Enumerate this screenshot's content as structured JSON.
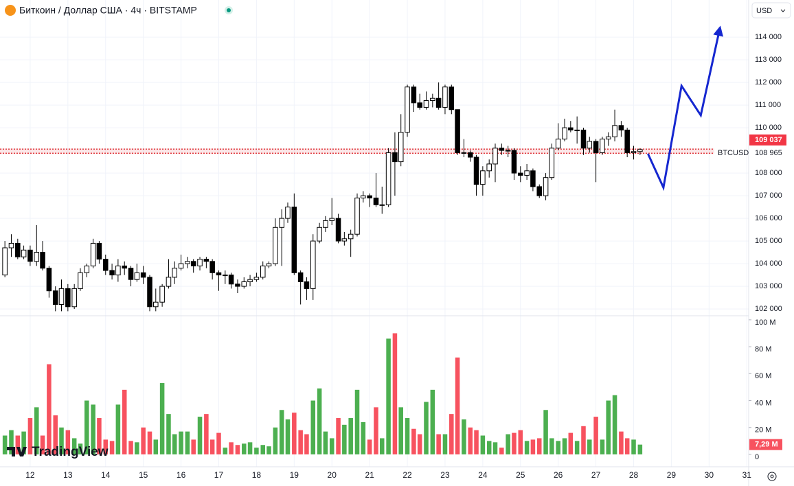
{
  "chart_data": {
    "type": "candlestick",
    "title": "Биткоин / Доллар США · 4ч · BITSTAMP",
    "currency": "USD",
    "brand": "TradingView",
    "up_color": "#ffffff",
    "down_color": "#000000",
    "volume_up_color": "#4caf50",
    "volume_down_color": "#f7525f",
    "x": [
      11.33,
      11.5,
      11.67,
      11.83,
      12,
      12.17,
      12.33,
      12.5,
      12.67,
      12.83,
      13,
      13.17,
      13.33,
      13.5,
      13.67,
      13.83,
      14,
      14.17,
      14.33,
      14.5,
      14.67,
      14.83,
      15,
      15.17,
      15.33,
      15.5,
      15.67,
      15.83,
      16,
      16.17,
      16.33,
      16.5,
      16.67,
      16.83,
      17,
      17.17,
      17.33,
      17.5,
      17.67,
      17.83,
      18,
      18.17,
      18.33,
      18.5,
      18.67,
      18.83,
      19,
      19.17,
      19.33,
      19.5,
      19.67,
      19.83,
      20,
      20.17,
      20.33,
      20.5,
      20.67,
      20.83,
      21,
      21.17,
      21.33,
      21.5,
      21.67,
      21.83,
      22,
      22.17,
      22.33,
      22.5,
      22.67,
      22.83,
      23,
      23.17,
      23.33,
      23.5,
      23.67,
      23.83,
      24,
      24.17,
      24.33,
      24.5,
      24.67,
      24.83,
      25,
      25.17,
      25.33,
      25.5,
      25.67,
      25.83,
      26,
      26.17,
      26.33,
      26.5,
      26.67,
      26.83,
      27,
      27.17,
      27.33,
      27.5,
      27.67,
      27.83,
      28,
      28.17
    ],
    "open": [
      103500,
      104700,
      104900,
      104300,
      104600,
      104100,
      104500,
      103800,
      102800,
      102200,
      102900,
      102100,
      102900,
      103600,
      103900,
      104900,
      104200,
      103700,
      103500,
      103900,
      103800,
      103300,
      103600,
      103400,
      102100,
      102300,
      103000,
      103400,
      103800,
      104000,
      104100,
      103900,
      104200,
      104100,
      103600,
      103500,
      103500,
      103100,
      103000,
      103200,
      103300,
      103400,
      103900,
      104000,
      105600,
      106000,
      106500,
      103600,
      103200,
      102900,
      105000,
      105600,
      105900,
      106000,
      105000,
      105100,
      105300,
      106900,
      107000,
      106900,
      106600,
      106600,
      108900,
      108500,
      109800,
      111800,
      111100,
      110900,
      111200,
      111300,
      110900,
      111800,
      110800,
      108900,
      108900,
      108700,
      107500,
      108100,
      108400,
      109100,
      109000,
      109000,
      108000,
      107900,
      108100,
      107400,
      107000,
      107800,
      109100,
      109500,
      110000,
      109900,
      109900,
      109100,
      109400,
      108900,
      109500,
      109600,
      110100,
      109900,
      108900,
      108950
    ],
    "high": [
      105000,
      105300,
      105100,
      104800,
      104800,
      105700,
      105000,
      103900,
      103000,
      103300,
      103100,
      103100,
      103800,
      104000,
      105100,
      105000,
      104400,
      104000,
      104200,
      104100,
      103900,
      104000,
      103900,
      103500,
      102900,
      103100,
      104200,
      104100,
      104400,
      104300,
      104200,
      104300,
      104300,
      104200,
      103700,
      103700,
      103600,
      103300,
      103400,
      103500,
      103600,
      104100,
      104100,
      106000,
      106400,
      106700,
      107100,
      103700,
      103400,
      105300,
      105800,
      106100,
      106900,
      106200,
      105400,
      105500,
      107100,
      107200,
      107100,
      108000,
      107400,
      109100,
      109800,
      110600,
      111900,
      111900,
      111500,
      111600,
      111500,
      112000,
      111900,
      111900,
      110800,
      109500,
      109000,
      108800,
      108300,
      108600,
      109300,
      109300,
      109200,
      109100,
      108300,
      108400,
      108200,
      107500,
      108000,
      109300,
      110200,
      110400,
      110300,
      110500,
      110000,
      109600,
      109500,
      109600,
      109800,
      110800,
      110300,
      110000,
      109200,
      109100
    ],
    "low": [
      103400,
      104300,
      104200,
      104200,
      103900,
      103900,
      103700,
      102500,
      101900,
      101900,
      101900,
      102000,
      102800,
      103400,
      103800,
      104000,
      103500,
      103300,
      103200,
      103500,
      103000,
      103200,
      103100,
      101900,
      101900,
      102100,
      102900,
      103100,
      103700,
      103800,
      103600,
      103700,
      103800,
      103300,
      102800,
      103100,
      102900,
      102700,
      102900,
      103000,
      103200,
      103300,
      103800,
      103900,
      103900,
      105800,
      103500,
      102200,
      102400,
      102400,
      104900,
      105400,
      105700,
      104900,
      104800,
      104300,
      105200,
      106700,
      106500,
      106500,
      106200,
      106500,
      107000,
      108300,
      109600,
      110700,
      110800,
      110800,
      110900,
      110800,
      110600,
      110600,
      108800,
      108700,
      108500,
      107000,
      107000,
      107800,
      107600,
      108800,
      108700,
      107700,
      107600,
      107700,
      107200,
      106900,
      106800,
      107700,
      109000,
      109400,
      109800,
      109300,
      108800,
      108900,
      107600,
      108800,
      109200,
      109400,
      109600,
      108700,
      108600,
      108800
    ],
    "close": [
      104700,
      104900,
      104300,
      104600,
      104100,
      104500,
      103800,
      102800,
      102200,
      102900,
      102100,
      102900,
      103600,
      103900,
      104900,
      104200,
      103700,
      103500,
      103900,
      103800,
      103300,
      103600,
      103400,
      102100,
      102300,
      103000,
      103400,
      103800,
      104000,
      104100,
      103900,
      104200,
      104100,
      103600,
      103500,
      103500,
      103100,
      103000,
      103200,
      103300,
      103400,
      103900,
      104000,
      105600,
      106000,
      106500,
      103600,
      103200,
      102900,
      105000,
      105600,
      105900,
      106000,
      105000,
      105100,
      105300,
      106900,
      107000,
      106900,
      106600,
      106600,
      108900,
      108500,
      109800,
      111800,
      111100,
      110900,
      111200,
      111300,
      110900,
      111800,
      110800,
      108900,
      108900,
      108700,
      107500,
      108100,
      108400,
      109100,
      109000,
      109000,
      108000,
      107900,
      108100,
      107400,
      107000,
      107800,
      109100,
      109500,
      110000,
      109900,
      109900,
      109100,
      109400,
      108900,
      109500,
      109600,
      110100,
      109900,
      108900,
      108950,
      109037
    ],
    "volume": [
      14,
      18,
      14,
      17,
      27,
      35,
      14,
      67,
      29,
      20,
      18,
      12,
      8,
      40,
      37,
      27,
      11,
      10,
      37,
      48,
      10,
      9,
      20,
      17,
      11,
      53,
      30,
      15,
      17,
      17,
      11,
      28,
      30,
      11,
      16,
      5,
      9,
      7,
      8,
      9,
      5,
      7,
      6,
      20,
      33,
      26,
      31,
      18,
      15,
      40,
      49,
      17,
      12,
      27,
      22,
      27,
      48,
      24,
      11,
      35,
      12,
      86,
      90,
      35,
      27,
      19,
      15,
      39,
      48,
      15,
      15,
      30,
      72,
      26,
      20,
      18,
      14,
      10,
      9,
      5,
      15,
      16,
      18,
      10,
      11,
      12,
      33,
      12,
      10,
      12,
      16,
      10,
      21,
      11,
      28,
      11,
      40,
      44,
      17,
      12,
      11,
      7.29
    ],
    "xlim": [
      11.2,
      31.05
    ],
    "xticks": [
      12,
      13,
      14,
      15,
      16,
      17,
      18,
      19,
      20,
      21,
      22,
      23,
      24,
      25,
      26,
      27,
      28,
      29,
      30,
      31
    ],
    "ylim": [
      101700,
      115640
    ],
    "yticks": [
      {
        "value": 102000,
        "label": "102 000"
      },
      {
        "value": 103000,
        "label": "103 000"
      },
      {
        "value": 104000,
        "label": "104 000"
      },
      {
        "value": 105000,
        "label": "105 000"
      },
      {
        "value": 106000,
        "label": "106 000"
      },
      {
        "value": 107000,
        "label": "107 000"
      },
      {
        "value": 108000,
        "label": "108 000"
      },
      {
        "value": 110000,
        "label": "110 000"
      },
      {
        "value": 111000,
        "label": "111 000"
      },
      {
        "value": 112000,
        "label": "112 000"
      },
      {
        "value": 113000,
        "label": "113 000"
      },
      {
        "value": 114000,
        "label": "114 000"
      }
    ],
    "volume_ylim": [
      -9.2,
      103
    ],
    "volume_yticks": [
      0,
      {
        "value": 20,
        "label": "20 M"
      },
      {
        "value": 40,
        "label": "40 M"
      },
      {
        "value": 60,
        "label": "60 M"
      },
      {
        "value": 80,
        "label": "80 M"
      },
      {
        "value": 100,
        "label": "100 M"
      }
    ],
    "last_price": {
      "value": 109037,
      "label": "109 037",
      "color": "#f23645"
    },
    "symbol_line": {
      "name": "BTCUSD",
      "value": 108965,
      "label": "108 965",
      "color": "#e0393e"
    },
    "last_volume": {
      "value": 7.29,
      "label": "7,29 M",
      "color": "#f7525f"
    },
    "forecast": {
      "x": [
        28.38,
        28.79,
        29.27,
        29.78,
        30.29
      ],
      "values": [
        108850,
        107360,
        111850,
        110550,
        114420
      ],
      "color": "#1527d0"
    }
  }
}
